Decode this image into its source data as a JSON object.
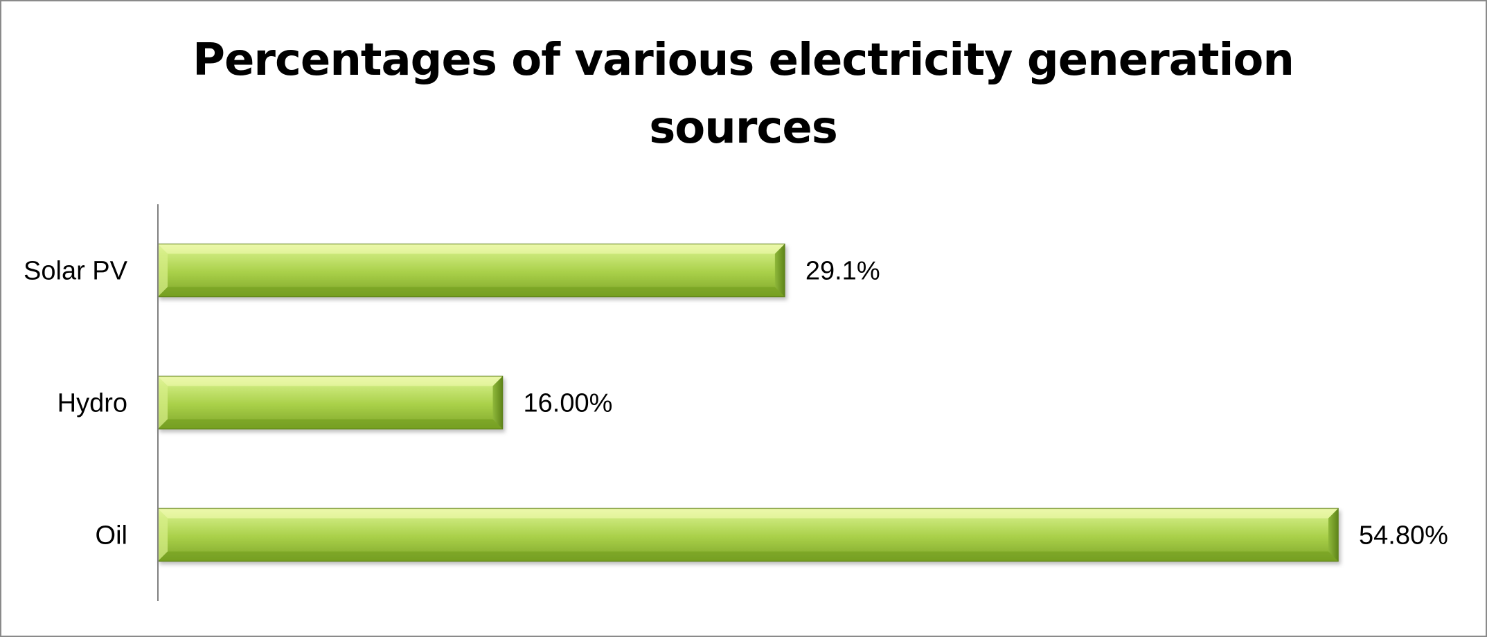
{
  "chart_data": {
    "type": "bar",
    "orientation": "horizontal",
    "title": "Percentages of various electricity generation sources",
    "categories": [
      "Solar PV",
      "Hydro",
      "Oil"
    ],
    "values": [
      29.1,
      16.0,
      54.8
    ],
    "value_labels": [
      "29.1%",
      "16.00%",
      "54.80%"
    ],
    "xlabel": "",
    "ylabel": "",
    "xlim": [
      0,
      54.8
    ],
    "grid": false,
    "legend": "none",
    "colors": {
      "bar_fill_top": "#e6f59a",
      "bar_fill_mid": "#a8cf48",
      "bar_fill_bottom": "#6f9a1e",
      "bar_edge": "#5a7d18",
      "axis": "#808080"
    }
  }
}
